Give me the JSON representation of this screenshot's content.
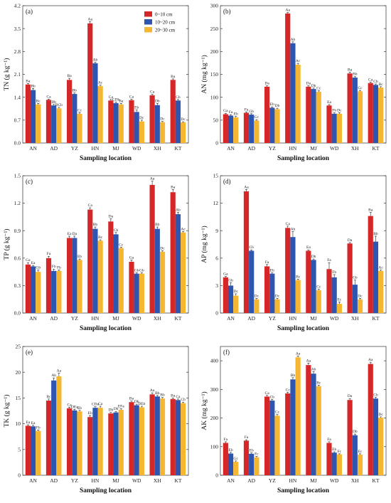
{
  "legend": [
    {
      "label": "0~10 cm",
      "color": "#d62728"
    },
    {
      "label": "10~20 cm",
      "color": "#2e56b0"
    },
    {
      "label": "20~30 cm",
      "color": "#f5b731"
    }
  ],
  "chart_data": [
    {
      "type": "bar",
      "panel": "(a)",
      "ylabel": "TN (g kg⁻¹)",
      "xlabel": "Sampling location",
      "categories": [
        "AN",
        "AD",
        "YZ",
        "HN",
        "MJ",
        "WD",
        "XH",
        "KT"
      ],
      "ylim": [
        0,
        4.2
      ],
      "yticks": [
        "0.0",
        "0.7",
        "1.4",
        "2.1",
        "2.8",
        "3.5",
        "4.2"
      ],
      "ytick_values": [
        0,
        0.7,
        1.4,
        2.1,
        2.8,
        3.5,
        4.2
      ],
      "legend_shown": true,
      "series": [
        {
          "values": [
            1.79,
            1.32,
            1.93,
            3.66,
            1.3,
            1.31,
            1.46,
            1.93
          ],
          "errors": [
            0.03,
            0.02,
            0.05,
            0.05,
            0.03,
            0.03,
            0.03,
            0.03
          ],
          "labels": [
            "Ba",
            "Ca",
            "Ba",
            "Aa",
            "Ca",
            "Ca",
            "Ca",
            "Ba"
          ]
        },
        {
          "values": [
            1.62,
            1.15,
            1.5,
            2.44,
            1.22,
            0.95,
            1.16,
            1.3
          ],
          "errors": [
            0.05,
            0.03,
            0.03,
            0.03,
            0.03,
            0.06,
            0.05,
            0.03
          ],
          "labels": [
            "Bb",
            "Db",
            "Bb",
            "Ab",
            "CDb",
            "Eb",
            "Db",
            "Cb"
          ]
        },
        {
          "values": [
            1.18,
            1.06,
            0.89,
            1.74,
            1.18,
            0.66,
            0.64,
            0.63
          ],
          "errors": [
            0.03,
            0.03,
            0.04,
            0.03,
            0.03,
            0.04,
            0.02,
            0.02
          ],
          "labels": [
            "Bc",
            "BCb",
            "Cc",
            "Ac",
            "Ba",
            "Dc",
            "Dc",
            "Dc"
          ]
        }
      ]
    },
    {
      "type": "bar",
      "panel": "(b)",
      "ylabel": "AN (mg kg⁻¹)",
      "xlabel": "Sampling location",
      "categories": [
        "AN",
        "AD",
        "YZ",
        "HN",
        "MJ",
        "WD",
        "XH",
        "KT"
      ],
      "ylim": [
        0,
        300
      ],
      "yticks": [
        "0",
        "50",
        "100",
        "150",
        "200",
        "250",
        "300"
      ],
      "ytick_values": [
        0,
        50,
        100,
        150,
        200,
        250,
        300
      ],
      "legend_shown": false,
      "series": [
        {
          "values": [
            63,
            66,
            123,
            283,
            123,
            82,
            152,
            131
          ],
          "errors": [
            2,
            2,
            2,
            2,
            2,
            2,
            3,
            2
          ],
          "labels": [
            "Ga",
            "Fa",
            "Da",
            "Aa",
            "Da",
            "Ea",
            "Ba",
            "Ca"
          ]
        },
        {
          "values": [
            60,
            62,
            77,
            218,
            118,
            64,
            143,
            127
          ],
          "errors": [
            2,
            2,
            2,
            3,
            2,
            2,
            2,
            2
          ],
          "labels": [
            "Fa",
            "Gb",
            "Eb",
            "Ab",
            "Db",
            "Fb",
            "Bb",
            "Cb"
          ]
        },
        {
          "values": [
            56,
            49,
            74,
            171,
            112,
            64,
            113,
            121
          ],
          "errors": [
            2,
            2,
            2,
            3,
            2,
            2,
            2,
            2
          ],
          "labels": [
            "Eb",
            "Gc",
            "Db",
            "Ac",
            "Cc",
            "Dc",
            "Cc",
            "Bc"
          ]
        }
      ]
    },
    {
      "type": "bar",
      "panel": "(c)",
      "ylabel": "TP (g kg⁻¹)",
      "xlabel": "Sampling location",
      "categories": [
        "AN",
        "AD",
        "YZ",
        "HN",
        "MJ",
        "WD",
        "XH",
        "KT"
      ],
      "ylim": [
        0,
        1.5
      ],
      "yticks": [
        "0.0",
        "0.3",
        "0.6",
        "0.9",
        "1.2",
        "1.5"
      ],
      "ytick_values": [
        0,
        0.3,
        0.6,
        0.9,
        1.2,
        1.5
      ],
      "legend_shown": false,
      "series": [
        {
          "values": [
            0.53,
            0.6,
            0.82,
            1.13,
            1.0,
            0.56,
            1.4,
            1.32
          ],
          "errors": [
            0.02,
            0.02,
            0.02,
            0.02,
            0.03,
            0.02,
            0.04,
            0.03
          ],
          "labels": [
            "Ga",
            "Fa",
            "Ea",
            "Ca",
            "Da",
            "Ga",
            "Aa",
            "Ba"
          ]
        },
        {
          "values": [
            0.51,
            0.46,
            0.82,
            0.92,
            0.86,
            0.43,
            0.92,
            1.08
          ],
          "errors": [
            0.01,
            0.02,
            0.02,
            0.02,
            0.02,
            0.01,
            0.02,
            0.02
          ],
          "labels": [
            "Ea",
            "Fb",
            "Da",
            "Bb",
            "Cb",
            "Gb",
            "Bb",
            "Ab"
          ]
        },
        {
          "values": [
            0.45,
            0.46,
            0.58,
            0.79,
            0.71,
            0.43,
            0.67,
            0.88
          ],
          "errors": [
            0.02,
            0.01,
            0.01,
            0.01,
            0.01,
            0.01,
            0.01,
            0.01
          ],
          "labels": [
            "Gb",
            "Fb",
            "Eb",
            "Bc",
            "Cc",
            "Gb",
            "Dc",
            "Ac"
          ]
        }
      ]
    },
    {
      "type": "bar",
      "panel": "(d)",
      "ylabel": "AP (mg kg⁻¹)",
      "xlabel": "Sampling location",
      "categories": [
        "AN",
        "AD",
        "YZ",
        "HN",
        "MJ",
        "WD",
        "XH",
        "KT"
      ],
      "ylim": [
        0,
        15
      ],
      "yticks": [
        "0",
        "3",
        "6",
        "9",
        "12",
        "15"
      ],
      "ytick_values": [
        0,
        3,
        6,
        9,
        12,
        15
      ],
      "legend_shown": false,
      "series": [
        {
          "values": [
            3.9,
            13.3,
            5.1,
            9.3,
            6.8,
            4.8,
            7.6,
            10.6
          ],
          "errors": [
            0.1,
            0.2,
            0.2,
            0.2,
            0.1,
            0.7,
            0.1,
            0.4
          ],
          "labels": [
            "Ga",
            "Aa",
            "Fa",
            "Ca",
            "Ea",
            "Fa",
            "Da",
            "Ba"
          ]
        },
        {
          "values": [
            3.0,
            6.8,
            4.3,
            8.3,
            5.8,
            3.9,
            3.1,
            7.8
          ],
          "errors": [
            0.3,
            0.1,
            0.1,
            0.6,
            0.1,
            0.3,
            0.5,
            0.6
          ],
          "labels": [
            "Gb",
            "Cb",
            "Eb",
            "Ab",
            "Db",
            "Fb",
            "Gb",
            "Bb"
          ]
        },
        {
          "values": [
            1.9,
            1.5,
            1.5,
            3.6,
            2.5,
            1.0,
            1.5,
            4.6
          ],
          "errors": [
            0.2,
            0.1,
            0.1,
            0.1,
            0.1,
            0.2,
            0.1,
            0.1
          ],
          "labels": [
            "Dc",
            "Dc",
            "Dc",
            "Bc",
            "Cc",
            "Ec",
            "Dc",
            "Ac"
          ]
        }
      ]
    },
    {
      "type": "bar",
      "panel": "(e)",
      "ylabel": "TK (g kg⁻¹)",
      "xlabel": "Sampling location",
      "categories": [
        "AN",
        "AD",
        "YZ",
        "HN",
        "MJ",
        "WD",
        "XH",
        "KT"
      ],
      "ylim": [
        0,
        25
      ],
      "yticks": [
        "0",
        "5",
        "10",
        "15",
        "20",
        "25"
      ],
      "ytick_values": [
        0,
        5,
        10,
        15,
        20,
        25
      ],
      "legend_shown": false,
      "series": [
        {
          "values": [
            9.6,
            14.5,
            13.0,
            11.3,
            12.0,
            14.2,
            15.7,
            14.8
          ],
          "errors": [
            0.2,
            0.3,
            0.2,
            0.3,
            0.2,
            0.2,
            0.3,
            0.2
          ],
          "labels": [
            "Ea",
            "Bc",
            "Ca",
            "Eb",
            "Db",
            "Ba",
            "Aa",
            "Ba"
          ]
        },
        {
          "values": [
            9.5,
            18.4,
            12.6,
            13.1,
            12.2,
            13.6,
            15.3,
            14.6
          ],
          "errors": [
            0.2,
            0.5,
            0.2,
            0.2,
            0.2,
            0.2,
            0.2,
            0.2
          ],
          "labels": [
            "Ea",
            "Ab",
            "DEa",
            "CDa",
            "Db",
            "Db",
            "Bb",
            "Ca"
          ]
        },
        {
          "values": [
            8.6,
            19.2,
            12.4,
            13.1,
            12.7,
            13.2,
            14.9,
            14.0
          ],
          "errors": [
            0.2,
            0.6,
            0.2,
            0.3,
            0.2,
            0.2,
            0.2,
            0.2
          ],
          "labels": [
            "Fb",
            "Aa",
            "Eb",
            "Ca",
            "EFa",
            "DEb",
            "Bb",
            "Cb"
          ]
        }
      ]
    },
    {
      "type": "bar",
      "panel": "(f)",
      "ylabel": "AK (mg kg⁻¹)",
      "xlabel": "Sampling location",
      "categories": [
        "AN",
        "AD",
        "YZ",
        "HN",
        "MJ",
        "WD",
        "XH",
        "KT"
      ],
      "ylim": [
        0,
        450
      ],
      "yticks": [
        "0",
        "100",
        "200",
        "300",
        "400"
      ],
      "ytick_values": [
        0,
        100,
        200,
        300,
        400
      ],
      "legend_shown": false,
      "series": [
        {
          "values": [
            113,
            121,
            275,
            286,
            385,
            113,
            263,
            389
          ],
          "errors": [
            4,
            3,
            4,
            4,
            7,
            4,
            5,
            6
          ],
          "labels": [
            "Fa",
            "Fa",
            "Ca",
            "Cc",
            "Aa",
            "Fa",
            "Da",
            "Aa"
          ]
        },
        {
          "values": [
            76,
            75,
            261,
            335,
            355,
            79,
            140,
            268
          ],
          "errors": [
            4,
            3,
            4,
            6,
            7,
            3,
            4,
            4
          ],
          "labels": [
            "Eb",
            "Eb",
            "Cb",
            "Bb",
            "Ab",
            "Eb",
            "Db",
            "Cb"
          ]
        },
        {
          "values": [
            47,
            63,
            208,
            412,
            311,
            73,
            72,
            201
          ],
          "errors": [
            3,
            3,
            4,
            5,
            4,
            2,
            3,
            3
          ],
          "labels": [
            "Gc",
            "Fc",
            "Cc",
            "Aa",
            "Bc",
            "Fc",
            "Ec",
            "Dc"
          ]
        }
      ]
    }
  ]
}
